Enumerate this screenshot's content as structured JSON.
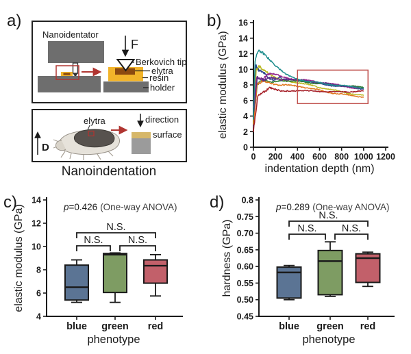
{
  "panel_a": {
    "label": "a)",
    "caption": "Nanoindentation",
    "top": {
      "device": "Nanoidentator",
      "force": "F",
      "tip": "Berkovich tip",
      "elytra": "elytra",
      "resin": "resin",
      "holder": "holder"
    },
    "bottom": {
      "elytra": "elytra",
      "direction": "direction",
      "surface": "surface",
      "dorsal": "D"
    },
    "colors": {
      "block_gray": "#6e6e6e",
      "resin_yellow": "#f2b42a",
      "elytra_brown": "#8c4a10",
      "surface_layer": "#d6b769",
      "surface_text": "#c8a12e",
      "stage_gray": "#9b9b9b",
      "accent_red": "#b03531"
    }
  },
  "chart_data": [
    {
      "id": "b",
      "panel_label": "b)",
      "type": "line",
      "xlabel": "indentation depth (nm)",
      "ylabel": "elastic modulus (GPa)",
      "xlim": [
        0,
        1200
      ],
      "ylim": [
        0,
        16
      ],
      "xticks": [
        0,
        200,
        400,
        600,
        800,
        1000,
        1200
      ],
      "yticks": [
        0,
        2,
        4,
        6,
        8,
        10,
        12,
        14,
        16
      ],
      "grid": false,
      "legend": "none",
      "highlight_box": {
        "x": [
          400,
          1040
        ],
        "y": [
          5.6,
          9.9
        ],
        "color": "#c0504d"
      },
      "series": [
        {
          "name": "curve-navy",
          "color": "#28418c",
          "points": [
            [
              0,
              2.6
            ],
            [
              20,
              10.5
            ],
            [
              50,
              9.8
            ],
            [
              90,
              9.6
            ],
            [
              130,
              9.0
            ],
            [
              180,
              8.6
            ],
            [
              240,
              9.1
            ],
            [
              260,
              8.7
            ],
            [
              300,
              8.7
            ],
            [
              400,
              8.65
            ],
            [
              500,
              8.4
            ],
            [
              600,
              8.15
            ],
            [
              700,
              7.95
            ],
            [
              800,
              7.8
            ],
            [
              900,
              7.65
            ],
            [
              1000,
              7.5
            ]
          ]
        },
        {
          "name": "curve-olive",
          "color": "#b9b821",
          "points": [
            [
              0,
              3.2
            ],
            [
              25,
              9.9
            ],
            [
              55,
              10.4
            ],
            [
              90,
              10.0
            ],
            [
              140,
              9.5
            ],
            [
              200,
              8.9
            ],
            [
              260,
              8.6
            ],
            [
              320,
              8.5
            ],
            [
              400,
              8.3
            ],
            [
              500,
              8.0
            ],
            [
              600,
              7.7
            ],
            [
              700,
              7.4
            ],
            [
              800,
              7.1
            ],
            [
              900,
              6.85
            ],
            [
              1000,
              6.6
            ]
          ]
        },
        {
          "name": "curve-green",
          "color": "#2f7c35",
          "points": [
            [
              0,
              3.0
            ],
            [
              35,
              8.2
            ],
            [
              90,
              8.6
            ],
            [
              160,
              8.3
            ],
            [
              240,
              8.6
            ],
            [
              320,
              8.5
            ],
            [
              400,
              8.45
            ],
            [
              500,
              8.3
            ],
            [
              600,
              8.2
            ],
            [
              700,
              8.05
            ],
            [
              800,
              7.9
            ],
            [
              900,
              7.8
            ],
            [
              1000,
              7.7
            ]
          ]
        },
        {
          "name": "curve-orange",
          "color": "#e1771c",
          "points": [
            [
              0,
              2.9
            ],
            [
              35,
              8.1
            ],
            [
              90,
              8.5
            ],
            [
              160,
              8.2
            ],
            [
              240,
              8.0
            ],
            [
              320,
              7.95
            ],
            [
              400,
              7.85
            ],
            [
              500,
              7.6
            ],
            [
              600,
              7.3
            ],
            [
              700,
              7.0
            ],
            [
              800,
              6.8
            ],
            [
              900,
              6.6
            ],
            [
              1000,
              6.45
            ]
          ]
        },
        {
          "name": "curve-magenta",
          "color": "#94278d",
          "points": [
            [
              0,
              5.2
            ],
            [
              30,
              8.9
            ],
            [
              80,
              8.8
            ],
            [
              140,
              9.5
            ],
            [
              200,
              9.3
            ],
            [
              260,
              9.0
            ],
            [
              320,
              8.85
            ],
            [
              400,
              8.7
            ],
            [
              500,
              8.55
            ],
            [
              600,
              8.35
            ],
            [
              700,
              8.15
            ],
            [
              800,
              7.9
            ],
            [
              900,
              7.65
            ],
            [
              1000,
              7.45
            ]
          ]
        },
        {
          "name": "curve-purple",
          "color": "#5e2d84",
          "points": [
            [
              0,
              4.2
            ],
            [
              35,
              9.1
            ],
            [
              90,
              8.6
            ],
            [
              160,
              8.9
            ],
            [
              240,
              8.7
            ],
            [
              320,
              8.7
            ],
            [
              400,
              8.6
            ],
            [
              500,
              8.5
            ],
            [
              600,
              8.3
            ],
            [
              700,
              8.1
            ],
            [
              800,
              7.9
            ],
            [
              900,
              7.7
            ],
            [
              1000,
              7.5
            ]
          ]
        },
        {
          "name": "curve-teal",
          "color": "#1f8e8e",
          "points": [
            [
              0,
              3.5
            ],
            [
              15,
              11.2
            ],
            [
              40,
              12.3
            ],
            [
              70,
              12.2
            ],
            [
              110,
              11.8
            ],
            [
              150,
              11.2
            ],
            [
              200,
              10.5
            ],
            [
              250,
              9.9
            ],
            [
              300,
              9.3
            ],
            [
              350,
              8.95
            ],
            [
              400,
              8.75
            ],
            [
              500,
              8.45
            ],
            [
              600,
              8.25
            ],
            [
              700,
              8.05
            ],
            [
              800,
              7.9
            ],
            [
              900,
              7.75
            ],
            [
              1000,
              7.6
            ]
          ]
        },
        {
          "name": "curve-darkred",
          "color": "#a51e27",
          "points": [
            [
              0,
              2.0
            ],
            [
              40,
              6.6
            ],
            [
              90,
              7.1
            ],
            [
              150,
              7.7
            ],
            [
              200,
              7.35
            ],
            [
              260,
              7.15
            ],
            [
              320,
              7.25
            ],
            [
              400,
              7.3
            ],
            [
              500,
              7.2
            ],
            [
              600,
              7.2
            ],
            [
              700,
              7.1
            ],
            [
              800,
              7.1
            ],
            [
              900,
              7.15
            ],
            [
              1000,
              7.2
            ]
          ]
        }
      ]
    },
    {
      "id": "c",
      "panel_label": "c)",
      "type": "box",
      "stat": {
        "p": "p",
        "value": "=0.426",
        "method": "(One-way ANOVA)"
      },
      "xlabel": "phenotype",
      "ylabel": "elastic modulus (GPa)",
      "ylim": [
        4,
        14
      ],
      "yticks": [
        4,
        6,
        8,
        10,
        12,
        14
      ],
      "ytick_labels": [
        "4",
        "6",
        "8",
        "10",
        "12",
        "14"
      ],
      "categories": [
        "blue",
        "green",
        "red"
      ],
      "box_colors": [
        "#5b7494",
        "#7e9c63",
        "#c2606a"
      ],
      "boxes": [
        {
          "whisker_low": 5.2,
          "q1": 5.4,
          "median": 6.5,
          "q3": 8.4,
          "whisker_high": 8.85
        },
        {
          "whisker_low": 5.2,
          "q1": 6.05,
          "median": 9.3,
          "q3": 9.4,
          "whisker_high": 9.45
        },
        {
          "whisker_low": 5.75,
          "q1": 6.85,
          "median": 8.35,
          "q3": 8.85,
          "whisker_high": 9.3
        }
      ],
      "annotations": [
        {
          "label": "N.S.",
          "pair": [
            0,
            1
          ],
          "level": 1
        },
        {
          "label": "N.S.",
          "pair": [
            1,
            2
          ],
          "level": 1
        },
        {
          "label": "N.S.",
          "pair": [
            0,
            2
          ],
          "level": 2
        }
      ]
    },
    {
      "id": "d",
      "panel_label": "d)",
      "type": "box",
      "stat": {
        "p": "p",
        "value": "=0.289",
        "method": "(One-way ANOVA)"
      },
      "xlabel": "phenotype",
      "ylabel": "hardness (GPa)",
      "ylim": [
        0.45,
        0.8
      ],
      "yticks": [
        0.45,
        0.5,
        0.55,
        0.6,
        0.65,
        0.7,
        0.75,
        0.8
      ],
      "ytick_labels": [
        "0.45",
        "0.50",
        "0.55",
        "0.60",
        "0.65",
        "0.70",
        "0.75",
        "0.8"
      ],
      "categories": [
        "blue",
        "green",
        "red"
      ],
      "box_colors": [
        "#5b7494",
        "#7e9c63",
        "#c2606a"
      ],
      "boxes": [
        {
          "whisker_low": 0.5,
          "q1": 0.505,
          "median": 0.582,
          "q3": 0.598,
          "whisker_high": 0.603
        },
        {
          "whisker_low": 0.51,
          "q1": 0.515,
          "median": 0.616,
          "q3": 0.648,
          "whisker_high": 0.674
        },
        {
          "whisker_low": 0.54,
          "q1": 0.552,
          "median": 0.625,
          "q3": 0.638,
          "whisker_high": 0.643
        }
      ],
      "annotations": [
        {
          "label": "N.S.",
          "pair": [
            0,
            1
          ],
          "level": 1
        },
        {
          "label": "N.S.",
          "pair": [
            1,
            2
          ],
          "level": 1
        },
        {
          "label": "N.S.",
          "pair": [
            0,
            2
          ],
          "level": 2
        }
      ]
    }
  ]
}
